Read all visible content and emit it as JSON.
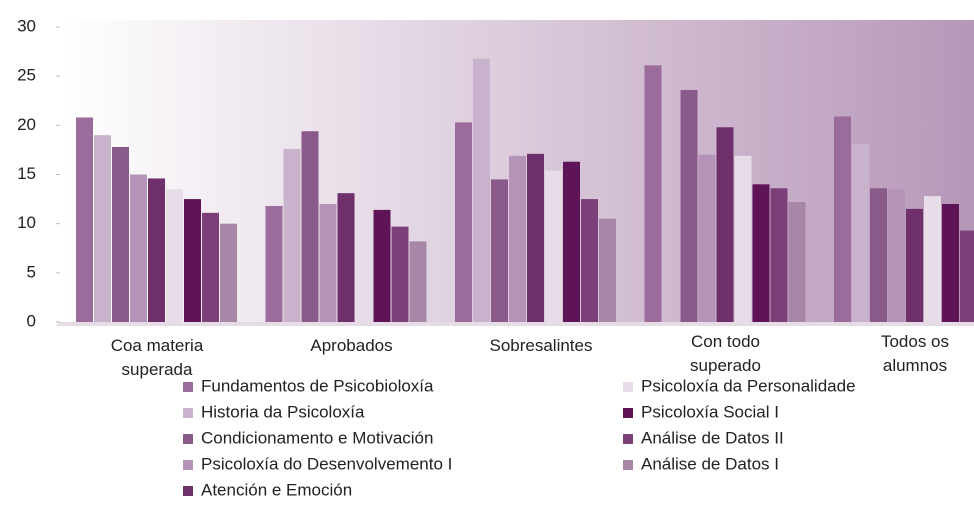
{
  "chart_data": {
    "type": "bar",
    "categories": [
      "Coa materia superada",
      "Aprobados",
      "Sobresalintes",
      "Con todo superado",
      "Todos os alumnos"
    ],
    "series": [
      {
        "name": "Fundamentos de Psicobioloxía",
        "color": "#9b6b9b",
        "values": [
          20.8,
          11.8,
          20.3,
          26.1,
          20.9
        ]
      },
      {
        "name": "Historia da Psicoloxía",
        "color": "#c9b3cc",
        "values": [
          19.0,
          17.6,
          26.8,
          null,
          18.1
        ]
      },
      {
        "name": "Condicionamento e Motivación",
        "color": "#8a5a8a",
        "values": [
          17.8,
          19.4,
          14.5,
          23.6,
          13.6
        ]
      },
      {
        "name": "Psicoloxía do Desenvolvemento I",
        "color": "#b592b7",
        "values": [
          15.0,
          12.0,
          16.9,
          17.0,
          13.5
        ]
      },
      {
        "name": "Atención e Emoción",
        "color": "#6e2f6a",
        "values": [
          14.6,
          13.1,
          17.1,
          19.8,
          11.5
        ]
      },
      {
        "name": "Psicoloxía da Personalidade",
        "color": "#e8dce9",
        "values": [
          13.5,
          null,
          15.4,
          16.9,
          12.8
        ]
      },
      {
        "name": "Psicoloxía Social I",
        "color": "#5e1457",
        "values": [
          12.5,
          11.4,
          16.3,
          14.0,
          12.0
        ]
      },
      {
        "name": "Análise de Datos II",
        "color": "#7d3f78",
        "values": [
          11.1,
          9.7,
          12.5,
          13.6,
          9.3
        ]
      },
      {
        "name": "Análise de Datos I",
        "color": "#a886a8",
        "values": [
          10.0,
          8.2,
          10.5,
          12.2,
          null
        ]
      }
    ],
    "ylim": [
      0,
      30
    ],
    "yticks": [
      0,
      5,
      10,
      15,
      20,
      25,
      30
    ],
    "legend": "bottom"
  }
}
